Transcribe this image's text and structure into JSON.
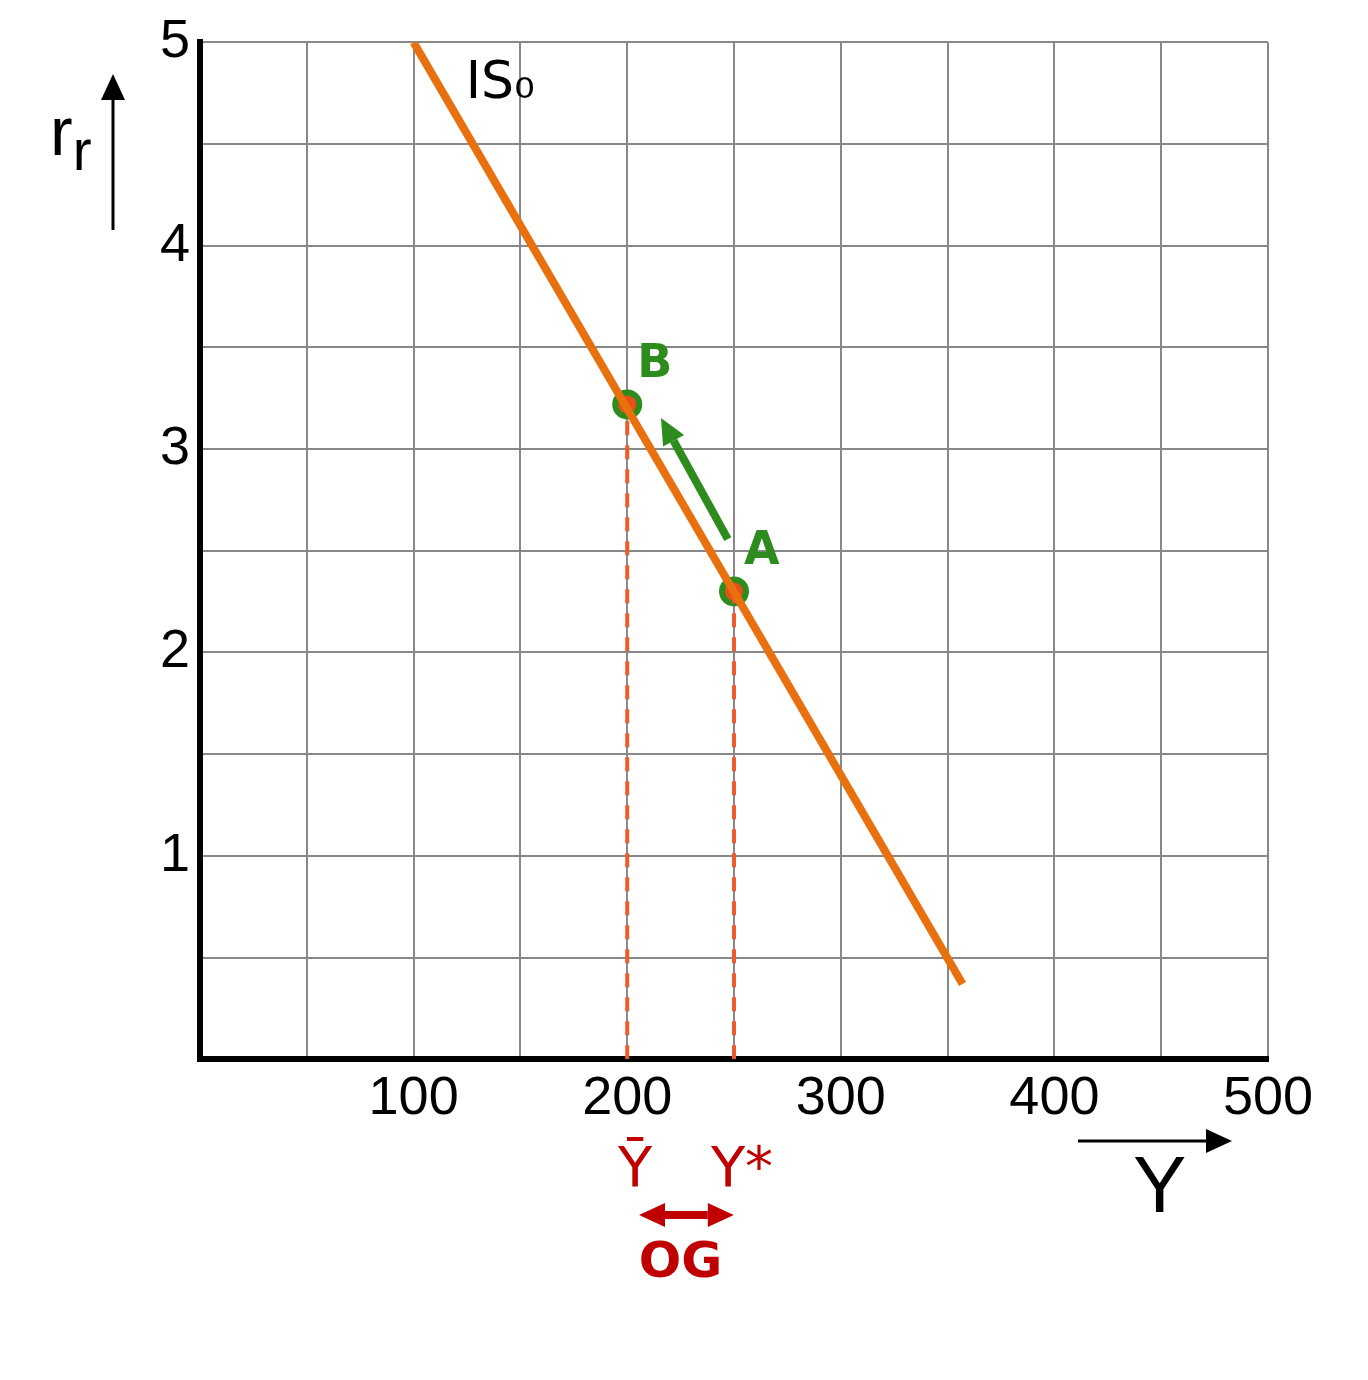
{
  "chart_data": {
    "type": "line",
    "xlabel": "Y",
    "ylabel": "r$_{r}$",
    "xlim": [
      0,
      500
    ],
    "ylim": [
      0,
      5
    ],
    "xticks": [
      {
        "value": 50,
        "label": null
      },
      100,
      {
        "value": 150,
        "label": null
      },
      200,
      {
        "value": 250,
        "label": null
      },
      300,
      {
        "value": 350,
        "label": null
      },
      400,
      {
        "value": 450,
        "label": null
      },
      500
    ],
    "yticks": [
      {
        "value": 0.5,
        "label": null
      },
      1,
      {
        "value": 1.5,
        "label": null
      },
      2,
      {
        "value": 2.5,
        "label": null
      },
      3,
      {
        "value": 3.5,
        "label": null
      },
      4,
      {
        "value": 4.5,
        "label": null
      },
      5
    ],
    "grid": true,
    "legend": false,
    "series": [
      {
        "name": "IS₀",
        "color": "#e8700f",
        "x": [
          100,
          357
        ],
        "values": [
          5,
          0.37
        ]
      },
      {
        "color": "#f05a28",
        "line_style": "dashed",
        "x": [
          200,
          200
        ],
        "values": [
          0,
          3.22
        ]
      },
      {
        "color": "#f05a28",
        "line_style": "dashed",
        "x": [
          250,
          250
        ],
        "values": [
          0,
          2.3
        ]
      },
      {
        "type": "scatter",
        "color": "#2e8b1e",
        "marker": "circle",
        "x": [
          200,
          250
        ],
        "values": [
          3.22,
          2.3
        ]
      }
    ],
    "annotations": [
      {
        "text": "A",
        "x": 250,
        "y": 2.3
      },
      {
        "text": "B",
        "x": 200,
        "y": 3.22
      },
      "Ȳ",
      "Y*",
      "OG"
    ]
  }
}
